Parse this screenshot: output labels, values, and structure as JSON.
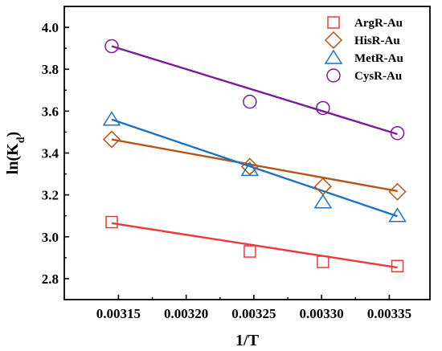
{
  "chart_data": {
    "type": "scatter",
    "xlabel": "1/T",
    "ylabel_main": "ln(K",
    "ylabel_sub": "d",
    "ylabel_close": ")",
    "xlim": [
      0.00311,
      0.00338
    ],
    "ylim": [
      2.7,
      4.1
    ],
    "xticks": [
      0.00315,
      0.0032,
      0.00325,
      0.0033,
      0.00335
    ],
    "xtick_labels": [
      "0.00315",
      "0.00320",
      "0.00325",
      "0.00330",
      "0.00335"
    ],
    "yticks": [
      2.8,
      3.0,
      3.2,
      3.4,
      3.6,
      3.8,
      4.0
    ],
    "ytick_labels": [
      "2.8",
      "3.0",
      "3.2",
      "3.4",
      "3.6",
      "3.8",
      "4.0"
    ],
    "legend_position": "top-right",
    "series": [
      {
        "name": "ArgR-Au",
        "marker": "square",
        "color": "#ec3a3a",
        "x": [
          0.003145,
          0.003247,
          0.003301,
          0.003356
        ],
        "y": [
          3.07,
          2.93,
          2.88,
          2.86
        ],
        "fit": [
          [
            0.003145,
            3.065
          ],
          [
            0.003356,
            2.853
          ]
        ]
      },
      {
        "name": "HisR-Au",
        "marker": "diamond",
        "color": "#b5541a",
        "x": [
          0.003145,
          0.003247,
          0.003301,
          0.003356
        ],
        "y": [
          3.465,
          3.335,
          3.24,
          3.215
        ],
        "fit": [
          [
            0.003145,
            3.465
          ],
          [
            0.003356,
            3.218
          ]
        ]
      },
      {
        "name": "MetR-Au",
        "marker": "triangle",
        "color": "#1a73c4",
        "x": [
          0.003145,
          0.003247,
          0.003301,
          0.003356
        ],
        "y": [
          3.56,
          3.32,
          3.165,
          3.1
        ],
        "fit": [
          [
            0.003145,
            3.56
          ],
          [
            0.003356,
            3.098
          ]
        ]
      },
      {
        "name": "CysR-Au",
        "marker": "circle",
        "color": "#7b1a9c",
        "x": [
          0.003145,
          0.003247,
          0.003301,
          0.003356
        ],
        "y": [
          3.91,
          3.645,
          3.615,
          3.495
        ],
        "fit": [
          [
            0.003145,
            3.91
          ],
          [
            0.003356,
            3.49
          ]
        ]
      }
    ]
  }
}
